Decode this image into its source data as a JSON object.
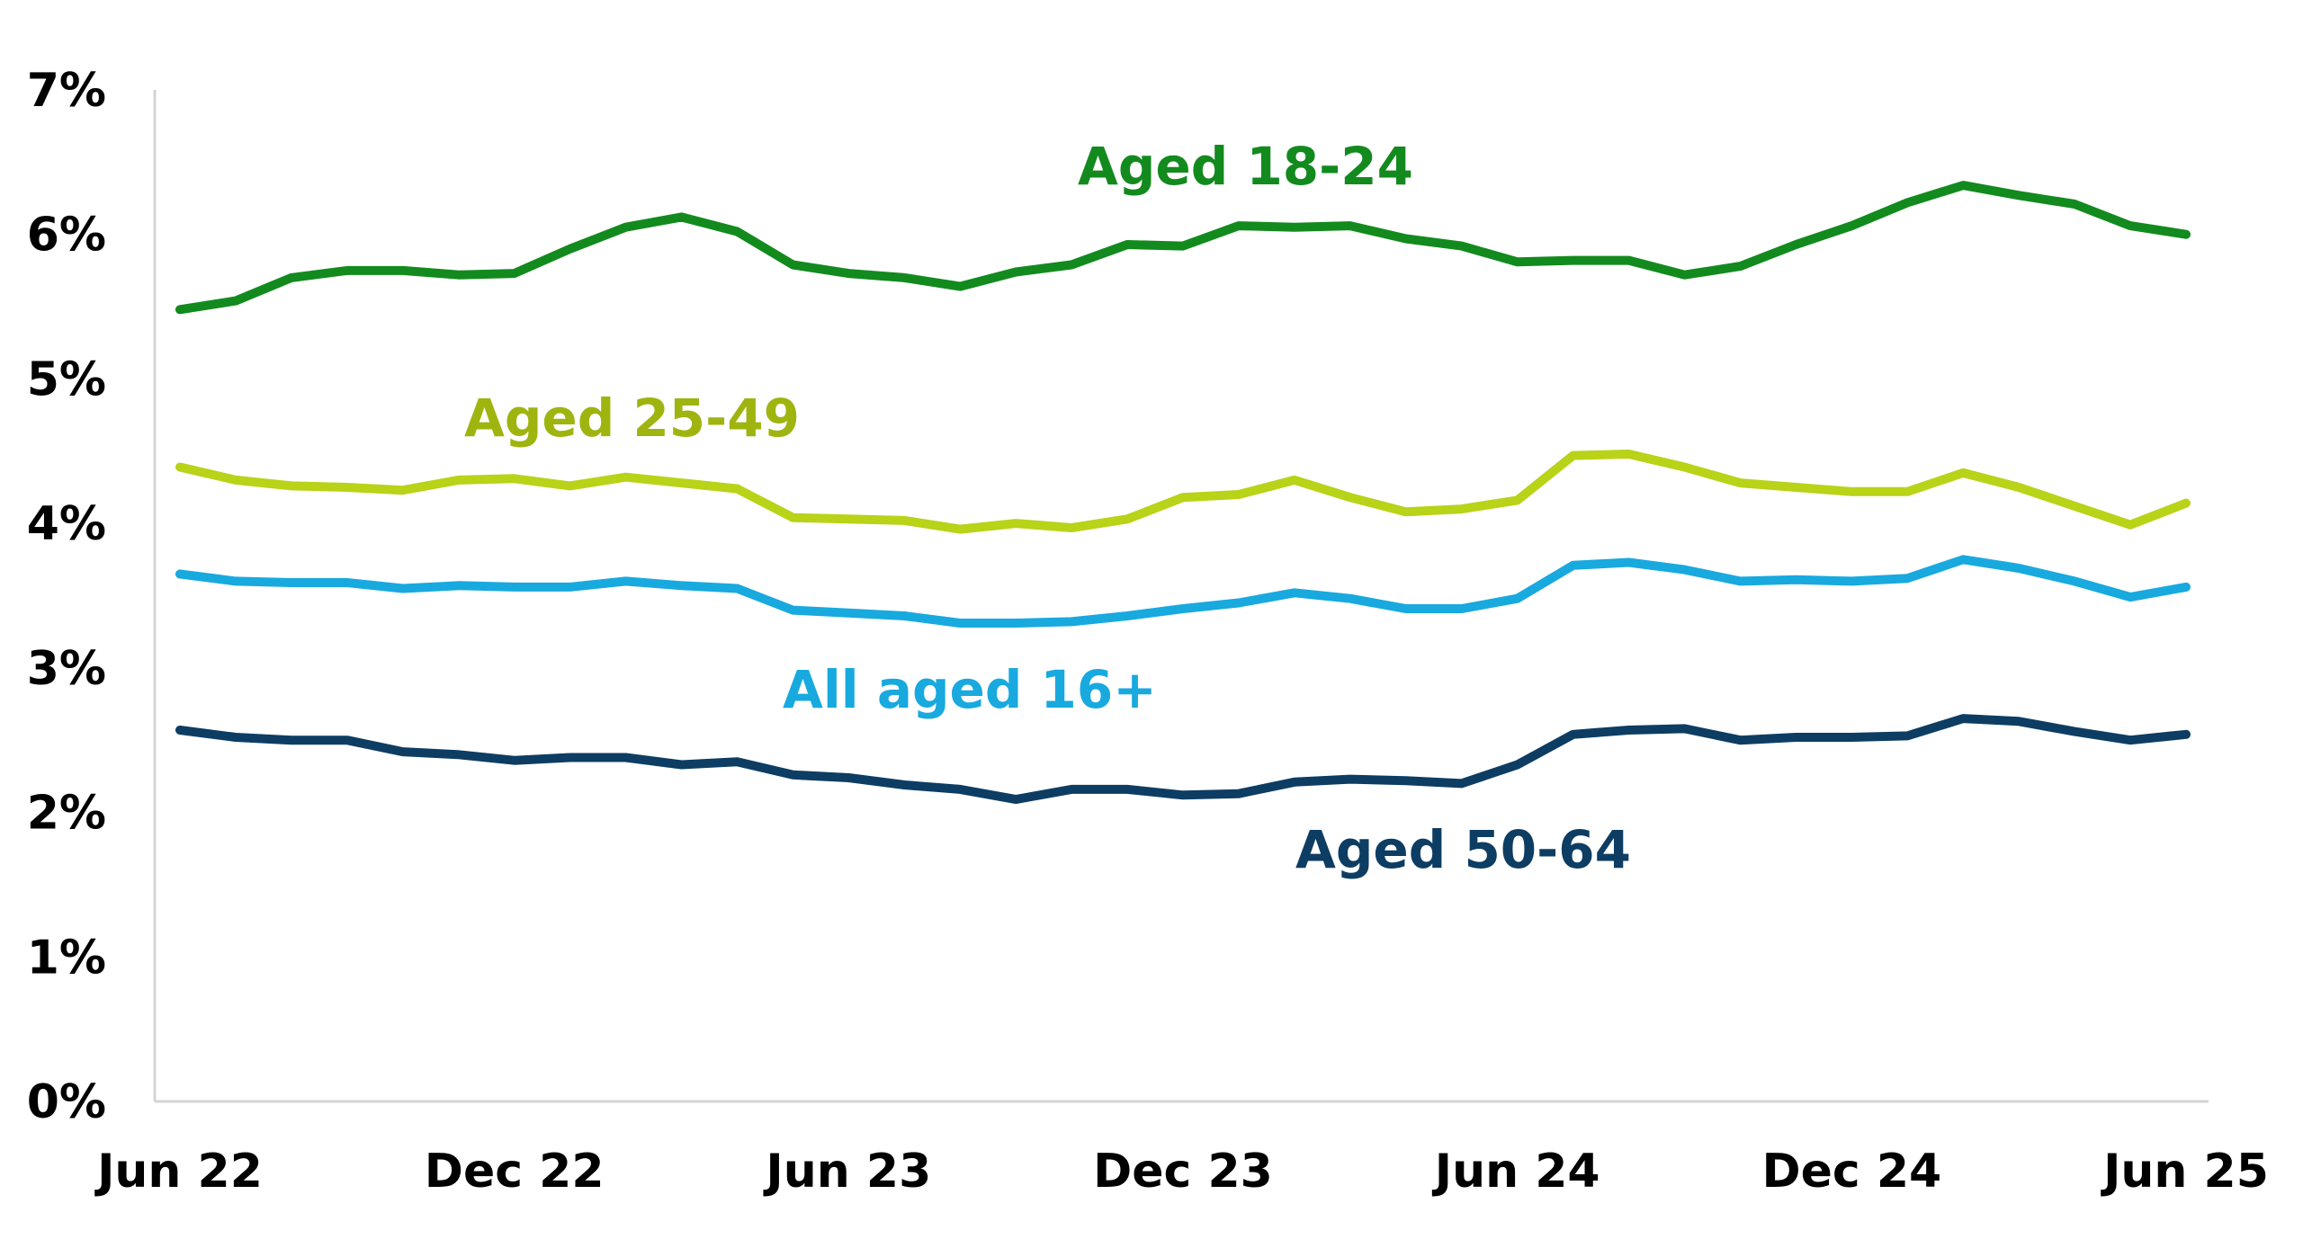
{
  "chart_data": {
    "type": "line",
    "title": "",
    "xlabel": "",
    "ylabel": "",
    "ylim": [
      0,
      7
    ],
    "y_ticks": [
      "0%",
      "1%",
      "2%",
      "3%",
      "4%",
      "5%",
      "6%",
      "7%"
    ],
    "x_ticks": [
      "Jun 22",
      "Dec 22",
      "Jun 23",
      "Dec 23",
      "Jun 24",
      "Dec 24",
      "Jun 25"
    ],
    "x": [
      "Jun 22",
      "Jul 22",
      "Aug 22",
      "Sep 22",
      "Oct 22",
      "Nov 22",
      "Dec 22",
      "Jan 23",
      "Feb 23",
      "Mar 23",
      "Apr 23",
      "May 23",
      "Jun 23",
      "Jul 23",
      "Aug 23",
      "Sep 23",
      "Oct 23",
      "Nov 23",
      "Dec 23",
      "Jan 24",
      "Feb 24",
      "Mar 24",
      "Apr 24",
      "May 24",
      "Jun 24",
      "Jul 24",
      "Aug 24",
      "Sep 24",
      "Oct 24",
      "Nov 24",
      "Dec 24",
      "Jan 25",
      "Feb 25",
      "Mar 25",
      "Apr 25",
      "May 25",
      "Jun 25"
    ],
    "grid": false,
    "legend": "none",
    "series": [
      {
        "name": "Aged 18-24",
        "color": "#138a1e",
        "values": [
          5.48,
          5.54,
          5.7,
          5.75,
          5.75,
          5.72,
          5.73,
          5.9,
          6.05,
          6.12,
          6.02,
          5.79,
          5.73,
          5.7,
          5.64,
          5.74,
          5.79,
          5.93,
          5.92,
          6.06,
          6.05,
          6.06,
          5.97,
          5.92,
          5.81,
          5.82,
          5.82,
          5.72,
          5.78,
          5.93,
          6.06,
          6.22,
          6.34,
          6.27,
          6.21,
          6.06,
          6.0
        ]
      },
      {
        "name": "Aged 25-49",
        "color": "#b8d318",
        "values": [
          4.39,
          4.3,
          4.26,
          4.25,
          4.23,
          4.3,
          4.31,
          4.26,
          4.32,
          4.28,
          4.24,
          4.04,
          4.03,
          4.02,
          3.96,
          4.0,
          3.97,
          4.03,
          4.18,
          4.2,
          4.3,
          4.18,
          4.08,
          4.1,
          4.16,
          4.47,
          4.48,
          4.39,
          4.28,
          4.25,
          4.22,
          4.22,
          4.35,
          4.25,
          4.12,
          3.99,
          4.14
        ]
      },
      {
        "name": "All aged 16+",
        "color": "#18a9df",
        "values": [
          3.65,
          3.6,
          3.59,
          3.59,
          3.55,
          3.57,
          3.56,
          3.56,
          3.6,
          3.57,
          3.55,
          3.4,
          3.38,
          3.36,
          3.31,
          3.31,
          3.32,
          3.36,
          3.41,
          3.45,
          3.52,
          3.48,
          3.41,
          3.41,
          3.48,
          3.71,
          3.73,
          3.68,
          3.6,
          3.61,
          3.6,
          3.62,
          3.75,
          3.69,
          3.6,
          3.49,
          3.56
        ]
      },
      {
        "name": "Aged 50-64",
        "color": "#0d3d63",
        "values": [
          2.57,
          2.52,
          2.5,
          2.5,
          2.42,
          2.4,
          2.36,
          2.38,
          2.38,
          2.33,
          2.35,
          2.26,
          2.24,
          2.19,
          2.16,
          2.09,
          2.16,
          2.16,
          2.12,
          2.13,
          2.21,
          2.23,
          2.22,
          2.2,
          2.33,
          2.54,
          2.57,
          2.58,
          2.5,
          2.52,
          2.52,
          2.53,
          2.65,
          2.63,
          2.56,
          2.5,
          2.54
        ]
      }
    ]
  },
  "labels": {
    "s0": "Aged 18-24",
    "s1": "Aged 25-49",
    "s2": "All aged 16+",
    "s3": "Aged 50-64"
  }
}
